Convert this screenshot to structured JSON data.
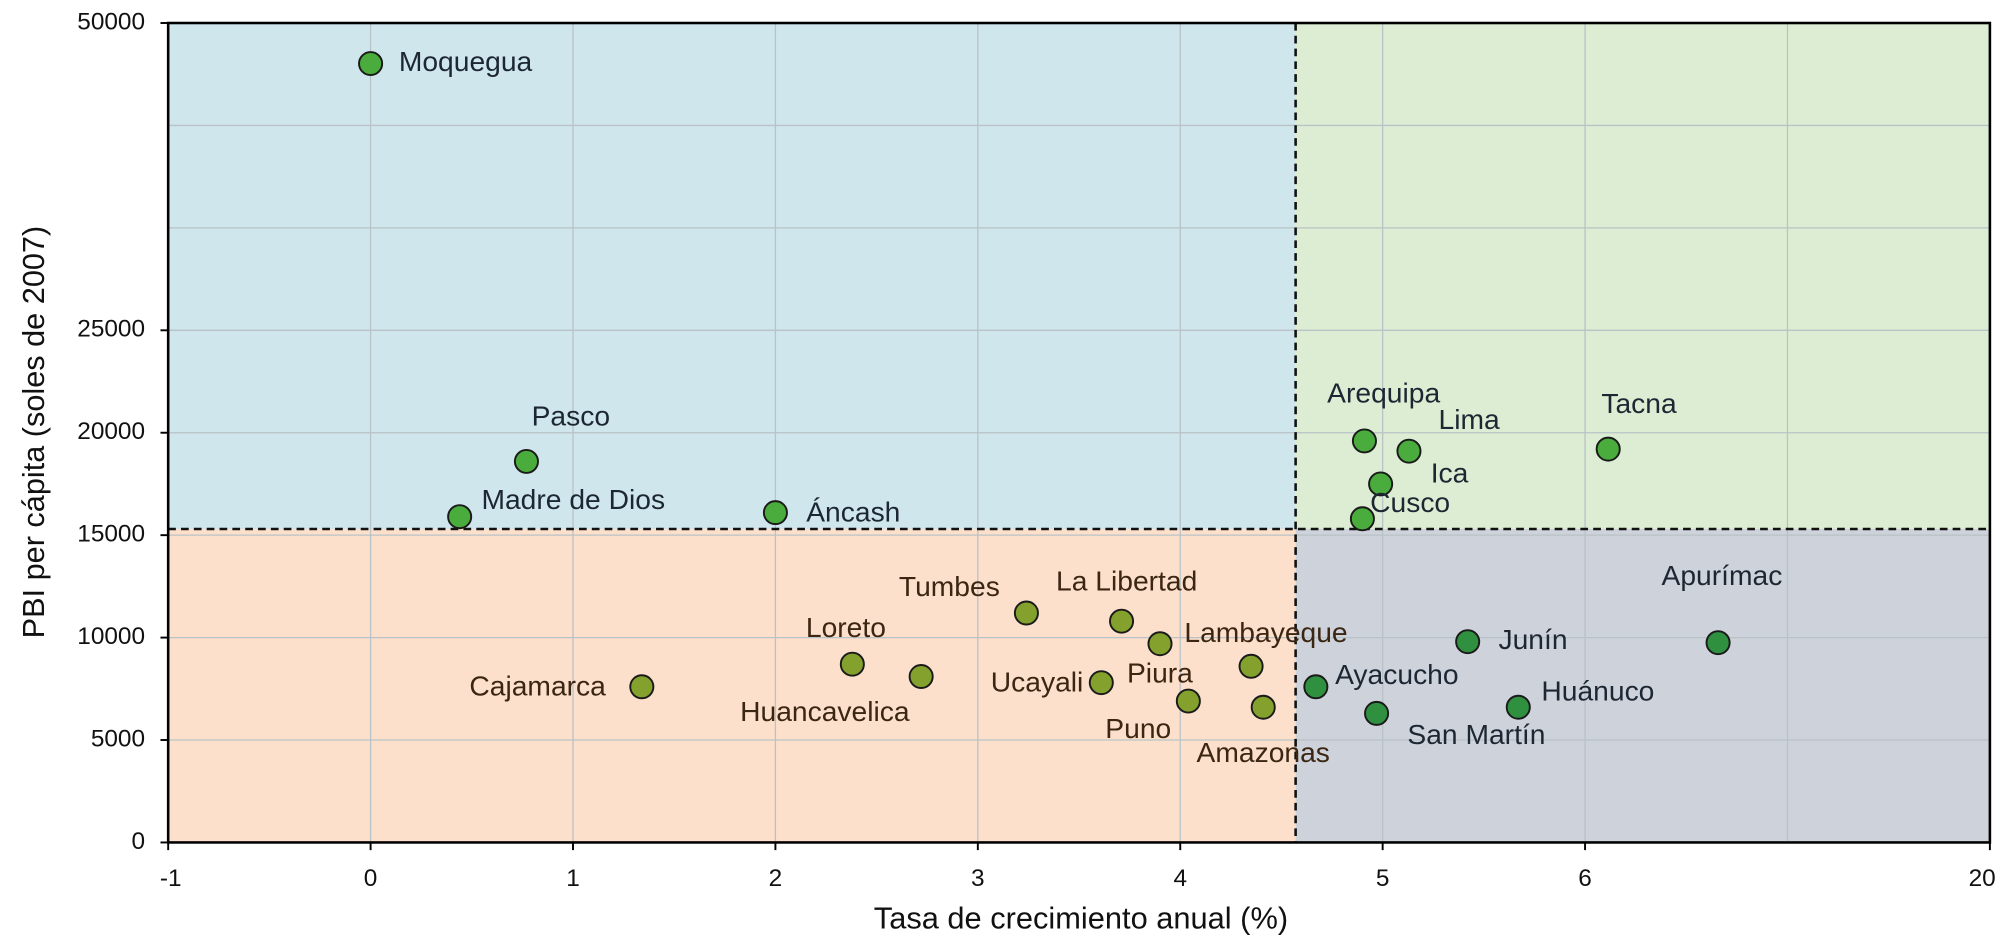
{
  "chart_data": {
    "type": "scatter",
    "x_label": "Tasa de crecimiento anual (%)",
    "y_label": "PBI per cápita (soles de 2007)",
    "xlim": [
      -1,
      20
    ],
    "ylim": [
      0,
      50000
    ],
    "xticks": [
      -1,
      0,
      1,
      2,
      3,
      4,
      5,
      6,
      20
    ],
    "yticks": [
      0,
      5000,
      10000,
      15000,
      20000,
      25000,
      50000
    ],
    "grid": true,
    "reference_lines": {
      "x": 4.57,
      "y": 15300
    },
    "quadrant_colors": {
      "top_left": "#cfe6ec",
      "top_right": "#dcedd3",
      "bottom_left": "#fde0cc",
      "bottom_right": "#cdd2db"
    },
    "points": [
      {
        "label": "Moquegua",
        "x": 0,
        "y": 46700,
        "color": "#4aac3c"
      },
      {
        "label": "Pasco",
        "x": 0.77,
        "y": 18600,
        "color": "#4aac3c"
      },
      {
        "label": "Madre de Dios",
        "x": 0.44,
        "y": 15900,
        "color": "#4aac3c"
      },
      {
        "label": "Áncash",
        "x": 2.0,
        "y": 16100,
        "color": "#4aac3c"
      },
      {
        "label": "Arequipa",
        "x": 4.91,
        "y": 19600,
        "color": "#4aac3c"
      },
      {
        "label": "Lima",
        "x": 5.13,
        "y": 19100,
        "color": "#4aac3c"
      },
      {
        "label": "Ica",
        "x": 4.99,
        "y": 17500,
        "color": "#4aac3c"
      },
      {
        "label": "Cusco",
        "x": 4.9,
        "y": 15800,
        "color": "#4aac3c"
      },
      {
        "label": "Tacna",
        "x": 6.8,
        "y": 19200,
        "color": "#4aac3c"
      },
      {
        "label": "Apurímac",
        "x": 10.6,
        "y": 9750,
        "color": "#2f9140"
      },
      {
        "label": "Junín",
        "x": 5.42,
        "y": 9800,
        "color": "#2f9140"
      },
      {
        "label": "Ayacucho",
        "x": 4.67,
        "y": 7600,
        "color": "#2f9140"
      },
      {
        "label": "San Martín",
        "x": 4.97,
        "y": 6300,
        "color": "#2f9140"
      },
      {
        "label": "Huánuco",
        "x": 5.67,
        "y": 6600,
        "color": "#2f9140"
      },
      {
        "label": "Cajamarca",
        "x": 1.34,
        "y": 7600,
        "color": "#83a12c"
      },
      {
        "label": "Loreto",
        "x": 2.38,
        "y": 8700,
        "color": "#83a12c"
      },
      {
        "label": "Huancavelica",
        "x": 2.72,
        "y": 8100,
        "color": "#83a12c"
      },
      {
        "label": "Tumbes",
        "x": 3.24,
        "y": 11200,
        "color": "#83a12c"
      },
      {
        "label": "La Libertad",
        "x": 3.71,
        "y": 10800,
        "color": "#83a12c"
      },
      {
        "label": "Lambayeque",
        "x": 3.9,
        "y": 9700,
        "color": "#83a12c"
      },
      {
        "label": "Ucayali",
        "x": 3.61,
        "y": 7800,
        "color": "#83a12c"
      },
      {
        "label": "Piura",
        "x": 4.35,
        "y": 8600,
        "color": "#83a12c"
      },
      {
        "label": "Puno",
        "x": 4.04,
        "y": 6900,
        "color": "#83a12c"
      },
      {
        "label": "Amazonas",
        "x": 4.41,
        "y": 6600,
        "color": "#83a12c"
      }
    ]
  }
}
